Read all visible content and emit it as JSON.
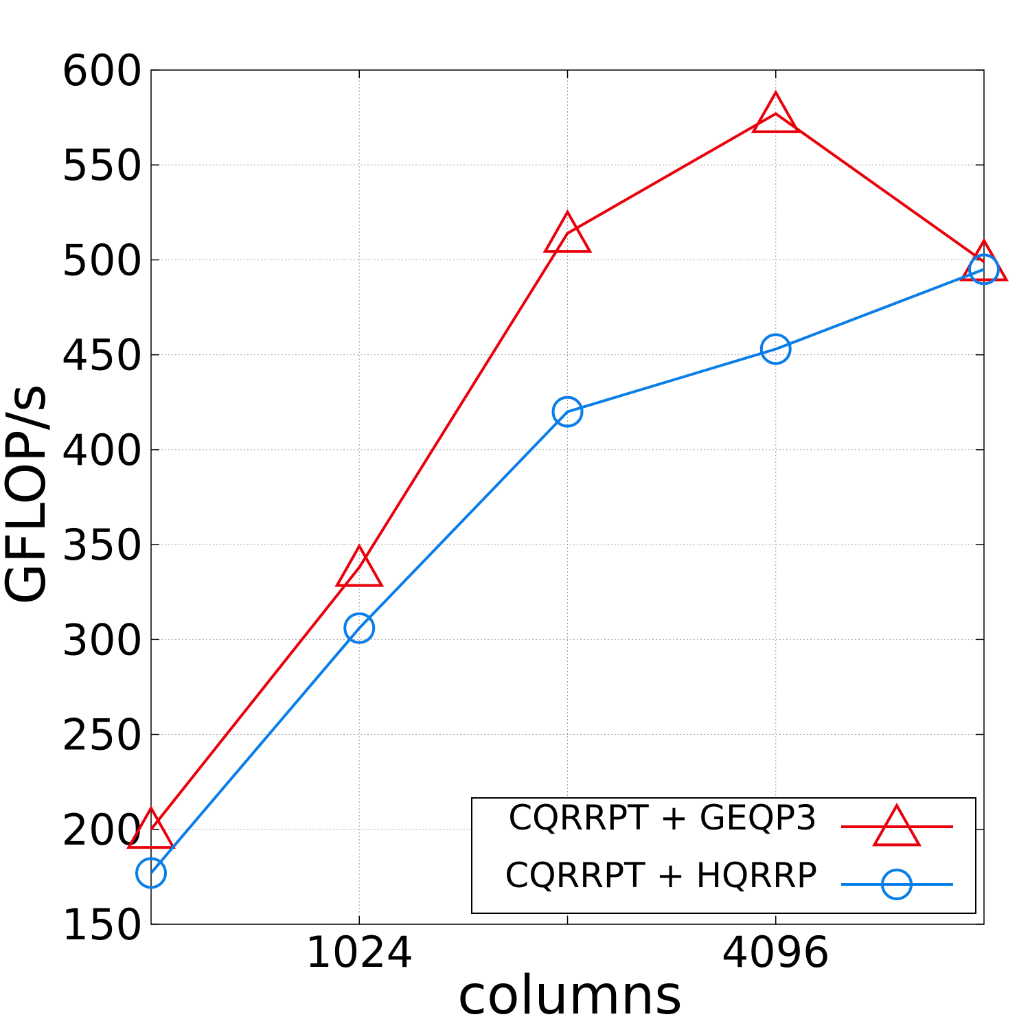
{
  "chart_data": {
    "type": "line",
    "title": "",
    "xlabel": "columns",
    "ylabel": "GFLOP/s",
    "x": [
      512,
      1024,
      2048,
      4096,
      8192
    ],
    "xscale": "log2",
    "xlim": [
      512,
      8192
    ],
    "xticks": [
      1024,
      4096
    ],
    "xtick_labels": [
      "1024",
      "4096"
    ],
    "ylim": [
      150,
      600
    ],
    "yticks": [
      150,
      200,
      250,
      300,
      350,
      400,
      450,
      500,
      550,
      600
    ],
    "ytick_labels": [
      "150",
      "200",
      "250",
      "300",
      "350",
      "400",
      "450",
      "500",
      "550",
      "600"
    ],
    "grid": true,
    "legend_position": "bottom-right",
    "series": [
      {
        "name": "CQRRPT + GEQP3",
        "color": "#e8000b",
        "marker": "triangle-icon",
        "values": [
          200,
          338,
          514,
          577,
          499
        ]
      },
      {
        "name": "CQRRPT + HQRRP",
        "color": "#0a7ee8",
        "marker": "circle-icon",
        "values": [
          177,
          306,
          420,
          453,
          495
        ]
      }
    ]
  }
}
